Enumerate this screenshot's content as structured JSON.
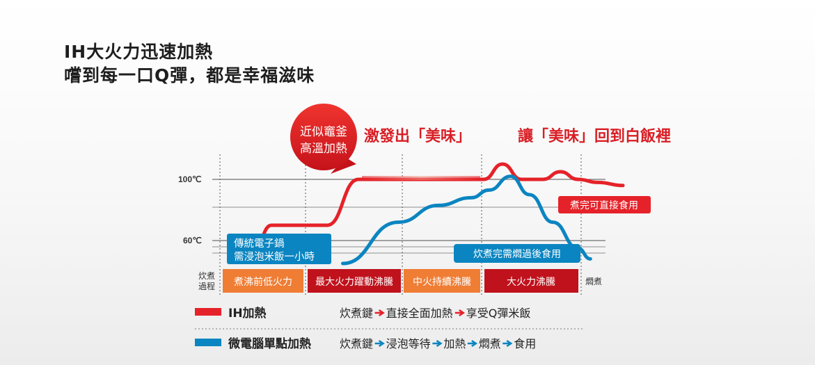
{
  "headline": {
    "line1": "IH大火力迅速加熱",
    "line2": "嚐到每一口Q彈，都是幸福滋味"
  },
  "callout": {
    "line1": "近似竈釜",
    "line2": "高溫加熱"
  },
  "slogans": {
    "left": "激發出「美味」",
    "right": "讓「美味」回到白飯裡"
  },
  "chart_data": {
    "type": "line",
    "y_ticks": [
      {
        "label": "100℃",
        "value": 100
      },
      {
        "label": "60℃",
        "value": 60
      }
    ],
    "stages_header": "炊煮過程",
    "stages": [
      "煮沸前低火力",
      "最大火力躍動沸騰",
      "中火持續沸騰",
      "大火力沸騰"
    ],
    "stage_after": "燜煮",
    "series": [
      {
        "name": "IH加熱",
        "color": "#e52229",
        "points": [
          [
            0,
            55
          ],
          [
            1,
            70
          ],
          [
            2,
            70
          ],
          [
            2.8,
            100
          ],
          [
            4,
            100
          ],
          [
            5.1,
            100
          ],
          [
            5.45,
            110
          ],
          [
            5.8,
            100
          ],
          [
            6.2,
            100
          ],
          [
            6.55,
            105
          ],
          [
            6.9,
            100
          ],
          [
            7.3,
            98
          ],
          [
            7.8,
            96
          ]
        ]
      },
      {
        "name": "微電腦單點加熱",
        "color": "#0b85c1",
        "points": [
          [
            2.4,
            45
          ],
          [
            3.4,
            72
          ],
          [
            4,
            83
          ],
          [
            4.8,
            88
          ],
          [
            5.2,
            93
          ],
          [
            5.6,
            102
          ],
          [
            5.95,
            90
          ],
          [
            6.4,
            72
          ],
          [
            6.9,
            55
          ],
          [
            7.15,
            48
          ]
        ]
      }
    ],
    "annotations": {
      "traditional": {
        "line1": "傳統電子鍋",
        "line2": "需浸泡米飯一小時"
      },
      "ih_done": "煮完可直接食用",
      "micro_done": "炊煮完需燜過後食用"
    }
  },
  "legend": [
    {
      "name": "IH加熱",
      "color": "#e52229",
      "steps": [
        "炊煮鍵",
        "直接全面加熱",
        "享受Q彈米飯"
      ]
    },
    {
      "name": "微電腦單點加熱",
      "color": "#0b85c1",
      "steps": [
        "炊煮鍵",
        "浸泡等待",
        "加熱",
        "燜煮",
        "食用"
      ]
    }
  ]
}
